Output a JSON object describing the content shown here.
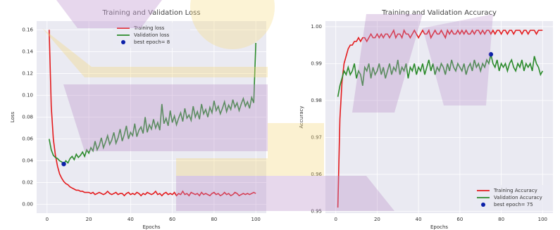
{
  "chart_data": [
    {
      "type": "line",
      "title": "Training and Validation Loss",
      "x_label": "Epochs",
      "y_label": "Loss",
      "x": [
        1,
        2,
        3,
        4,
        5,
        6,
        7,
        8,
        9,
        10,
        11,
        12,
        13,
        14,
        15,
        16,
        17,
        18,
        19,
        20,
        21,
        22,
        23,
        24,
        25,
        26,
        27,
        28,
        29,
        30,
        31,
        32,
        33,
        34,
        35,
        36,
        37,
        38,
        39,
        40,
        41,
        42,
        43,
        44,
        45,
        46,
        47,
        48,
        49,
        50,
        51,
        52,
        53,
        54,
        55,
        56,
        57,
        58,
        59,
        60,
        61,
        62,
        63,
        64,
        65,
        66,
        67,
        68,
        69,
        70,
        71,
        72,
        73,
        74,
        75,
        76,
        77,
        78,
        79,
        80,
        81,
        82,
        83,
        84,
        85,
        86,
        87,
        88,
        89,
        90,
        91,
        92,
        93,
        94,
        95,
        96,
        97,
        98,
        99,
        100
      ],
      "series": [
        {
          "name": "Training loss",
          "color": "#e41a1c",
          "values": [
            0.16,
            0.09,
            0.06,
            0.045,
            0.035,
            0.028,
            0.024,
            0.021,
            0.019,
            0.018,
            0.016,
            0.015,
            0.014,
            0.013,
            0.013,
            0.012,
            0.012,
            0.011,
            0.011,
            0.011,
            0.01,
            0.011,
            0.009,
            0.01,
            0.011,
            0.01,
            0.009,
            0.01,
            0.012,
            0.01,
            0.009,
            0.01,
            0.011,
            0.009,
            0.01,
            0.01,
            0.008,
            0.01,
            0.011,
            0.009,
            0.01,
            0.009,
            0.011,
            0.01,
            0.008,
            0.01,
            0.009,
            0.011,
            0.01,
            0.009,
            0.01,
            0.012,
            0.009,
            0.01,
            0.008,
            0.01,
            0.011,
            0.009,
            0.01,
            0.009,
            0.011,
            0.008,
            0.01,
            0.009,
            0.012,
            0.009,
            0.01,
            0.008,
            0.011,
            0.01,
            0.009,
            0.01,
            0.008,
            0.011,
            0.009,
            0.01,
            0.009,
            0.008,
            0.01,
            0.011,
            0.009,
            0.01,
            0.008,
            0.009,
            0.011,
            0.009,
            0.01,
            0.008,
            0.009,
            0.011,
            0.01,
            0.008,
            0.009,
            0.01,
            0.009,
            0.01,
            0.009,
            0.01,
            0.011,
            0.01
          ]
        },
        {
          "name": "Validation loss",
          "color": "#2a8a2a",
          "values": [
            0.06,
            0.05,
            0.045,
            0.043,
            0.042,
            0.04,
            0.039,
            0.037,
            0.04,
            0.038,
            0.042,
            0.044,
            0.041,
            0.046,
            0.043,
            0.045,
            0.048,
            0.044,
            0.05,
            0.047,
            0.052,
            0.049,
            0.058,
            0.05,
            0.054,
            0.061,
            0.052,
            0.057,
            0.063,
            0.055,
            0.059,
            0.066,
            0.056,
            0.061,
            0.069,
            0.058,
            0.064,
            0.072,
            0.06,
            0.066,
            0.063,
            0.074,
            0.062,
            0.068,
            0.071,
            0.065,
            0.08,
            0.066,
            0.073,
            0.069,
            0.078,
            0.07,
            0.075,
            0.068,
            0.092,
            0.074,
            0.079,
            0.072,
            0.086,
            0.075,
            0.081,
            0.073,
            0.079,
            0.084,
            0.076,
            0.088,
            0.079,
            0.082,
            0.077,
            0.09,
            0.08,
            0.085,
            0.078,
            0.092,
            0.083,
            0.087,
            0.08,
            0.089,
            0.084,
            0.095,
            0.086,
            0.09,
            0.083,
            0.088,
            0.094,
            0.085,
            0.091,
            0.087,
            0.096,
            0.089,
            0.093,
            0.086,
            0.092,
            0.097,
            0.09,
            0.094,
            0.088,
            0.098,
            0.093,
            0.148
          ]
        }
      ],
      "best": {
        "name": "best epoch= 8",
        "color": "#0b1fa8",
        "x": 8,
        "value": 0.037
      },
      "xlim": [
        -5,
        105
      ],
      "xticks": [
        0,
        20,
        40,
        60,
        80,
        100
      ],
      "ylim": [
        -0.008,
        0.168
      ],
      "yticks": [
        {
          "value": 0,
          "label": "0.00"
        },
        {
          "value": 0.02,
          "label": "0.02"
        },
        {
          "value": 0.04,
          "label": "0.04"
        },
        {
          "value": 0.06,
          "label": "0.06"
        },
        {
          "value": 0.08,
          "label": "0.08"
        },
        {
          "value": 0.1,
          "label": "0.10"
        },
        {
          "value": 0.12,
          "label": "0.12"
        },
        {
          "value": 0.14,
          "label": "0.14"
        },
        {
          "value": 0.16,
          "label": "0.16"
        }
      ],
      "grid": true,
      "legend": "upper center"
    },
    {
      "type": "line",
      "title": "Training and Validation Accuracy",
      "x_label": "Epochs",
      "y_label": "Accuracy",
      "x": [
        1,
        2,
        3,
        4,
        5,
        6,
        7,
        8,
        9,
        10,
        11,
        12,
        13,
        14,
        15,
        16,
        17,
        18,
        19,
        20,
        21,
        22,
        23,
        24,
        25,
        26,
        27,
        28,
        29,
        30,
        31,
        32,
        33,
        34,
        35,
        36,
        37,
        38,
        39,
        40,
        41,
        42,
        43,
        44,
        45,
        46,
        47,
        48,
        49,
        50,
        51,
        52,
        53,
        54,
        55,
        56,
        57,
        58,
        59,
        60,
        61,
        62,
        63,
        64,
        65,
        66,
        67,
        68,
        69,
        70,
        71,
        72,
        73,
        74,
        75,
        76,
        77,
        78,
        79,
        80,
        81,
        82,
        83,
        84,
        85,
        86,
        87,
        88,
        89,
        90,
        91,
        92,
        93,
        94,
        95,
        96,
        97,
        98,
        99,
        100
      ],
      "series": [
        {
          "name": "Training Accuracy",
          "color": "#e41a1c",
          "values": [
            0.951,
            0.975,
            0.985,
            0.99,
            0.992,
            0.994,
            0.995,
            0.995,
            0.996,
            0.996,
            0.997,
            0.996,
            0.997,
            0.997,
            0.996,
            0.997,
            0.998,
            0.997,
            0.997,
            0.998,
            0.997,
            0.998,
            0.997,
            0.998,
            0.998,
            0.997,
            0.998,
            0.999,
            0.997,
            0.998,
            0.998,
            0.997,
            0.999,
            0.998,
            0.998,
            0.997,
            0.998,
            0.999,
            0.998,
            0.997,
            0.998,
            0.999,
            0.998,
            0.998,
            0.999,
            0.997,
            0.998,
            0.999,
            0.998,
            0.998,
            0.999,
            0.998,
            0.997,
            0.999,
            0.998,
            0.999,
            0.998,
            0.998,
            0.999,
            0.998,
            0.999,
            0.998,
            0.999,
            0.998,
            0.998,
            0.999,
            0.998,
            0.999,
            0.999,
            0.998,
            0.999,
            0.998,
            0.999,
            0.999,
            0.998,
            0.999,
            0.998,
            0.999,
            0.999,
            0.998,
            0.999,
            0.999,
            0.998,
            0.999,
            0.999,
            0.998,
            0.999,
            0.999,
            0.999,
            0.998,
            0.999,
            0.999,
            0.998,
            0.999,
            0.999,
            0.999,
            0.998,
            0.999,
            0.999,
            0.999
          ]
        },
        {
          "name": "Validation Accuracy",
          "color": "#2a8a2a",
          "values": [
            0.981,
            0.984,
            0.986,
            0.988,
            0.987,
            0.989,
            0.987,
            0.988,
            0.99,
            0.986,
            0.988,
            0.987,
            0.984,
            0.989,
            0.988,
            0.99,
            0.986,
            0.989,
            0.987,
            0.988,
            0.99,
            0.987,
            0.989,
            0.986,
            0.988,
            0.99,
            0.987,
            0.989,
            0.988,
            0.991,
            0.987,
            0.989,
            0.988,
            0.99,
            0.986,
            0.989,
            0.988,
            0.99,
            0.987,
            0.989,
            0.988,
            0.99,
            0.987,
            0.989,
            0.991,
            0.988,
            0.99,
            0.987,
            0.989,
            0.988,
            0.99,
            0.989,
            0.987,
            0.99,
            0.988,
            0.991,
            0.989,
            0.988,
            0.99,
            0.989,
            0.988,
            0.99,
            0.987,
            0.989,
            0.99,
            0.988,
            0.991,
            0.989,
            0.99,
            0.988,
            0.99,
            0.989,
            0.991,
            0.99,
            0.9925,
            0.99,
            0.989,
            0.991,
            0.988,
            0.99,
            0.989,
            0.99,
            0.988,
            0.99,
            0.991,
            0.989,
            0.988,
            0.99,
            0.989,
            0.991,
            0.988,
            0.99,
            0.989,
            0.99,
            0.988,
            0.992,
            0.99,
            0.989,
            0.987,
            0.988
          ]
        }
      ],
      "best": {
        "name": "best epoch= 75",
        "color": "#0b1fa8",
        "x": 75,
        "value": 0.9925
      },
      "xlim": [
        -5,
        105
      ],
      "xticks": [
        0,
        20,
        40,
        60,
        80,
        100
      ],
      "ylim": [
        0.9495,
        1.0015
      ],
      "yticks": [
        0.95,
        0.96,
        0.97,
        0.98,
        0.99,
        {
          "value": 1,
          "label": "1.00"
        }
      ],
      "grid": true,
      "legend": "lower right"
    }
  ]
}
